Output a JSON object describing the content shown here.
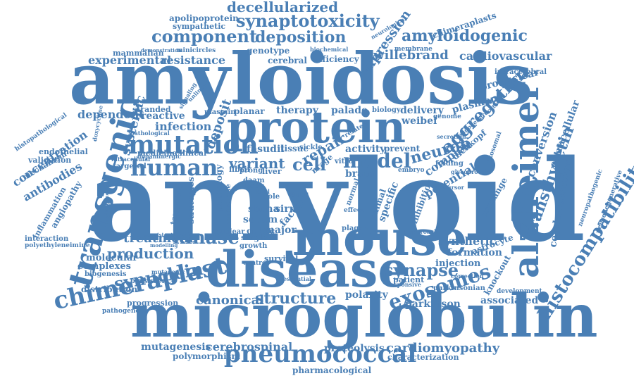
{
  "color": "#4a7fb5",
  "words": [
    {
      "text": "amyloid"
    },
    {
      "text": "amyloidosis"
    },
    {
      "text": "microglobulin"
    },
    {
      "text": "disease"
    },
    {
      "text": "mouse"
    },
    {
      "text": "protein"
    },
    {
      "text": "alzheimer"
    },
    {
      "text": "transgenic"
    },
    {
      "text": "histocompatibility"
    },
    {
      "text": "chimeraplast"
    },
    {
      "text": "pneumococcal"
    },
    {
      "text": "mutation"
    },
    {
      "text": "human"
    },
    {
      "text": "kinase"
    },
    {
      "text": "synuclein"
    },
    {
      "text": "model"
    },
    {
      "text": "exosomes"
    },
    {
      "text": "synapse"
    },
    {
      "text": "component"
    },
    {
      "text": "deposition"
    },
    {
      "text": "amyloidogenic"
    },
    {
      "text": "synaptotoxicity"
    },
    {
      "text": "decellularized"
    },
    {
      "text": "transthyretin"
    },
    {
      "text": "aggregation"
    },
    {
      "text": "neuron"
    },
    {
      "text": "structure"
    },
    {
      "text": "canonical"
    },
    {
      "text": "cerebrospinal"
    },
    {
      "text": "cardiomyopathy"
    },
    {
      "text": "mutagenesis"
    },
    {
      "text": "production"
    },
    {
      "text": "treatment"
    },
    {
      "text": "concentration"
    },
    {
      "text": "antibodies"
    },
    {
      "text": "systemic"
    },
    {
      "text": "deposit"
    },
    {
      "text": "repair"
    },
    {
      "text": "cell"
    },
    {
      "text": "variant"
    },
    {
      "text": "infection"
    },
    {
      "text": "expression"
    },
    {
      "text": "willebrand"
    },
    {
      "text": "cardiovascular"
    },
    {
      "text": "experimental"
    },
    {
      "text": "resistance"
    },
    {
      "text": "apolipoprotein"
    },
    {
      "text": "sympathetic"
    },
    {
      "text": "mammalian"
    },
    {
      "text": "minicircles"
    },
    {
      "text": "genotype"
    },
    {
      "text": "cerebral"
    },
    {
      "text": "efficiency"
    },
    {
      "text": "membrane"
    },
    {
      "text": "chimeraplasts"
    },
    {
      "text": "pronuclear"
    },
    {
      "text": "intracerebral"
    },
    {
      "text": "plasmon"
    },
    {
      "text": "weibel"
    },
    {
      "text": "delivery"
    },
    {
      "text": "genome"
    },
    {
      "text": "palade"
    },
    {
      "text": "therapy"
    },
    {
      "text": "planar"
    },
    {
      "text": "plasmin"
    },
    {
      "text": "biology"
    },
    {
      "text": "stranded"
    },
    {
      "text": "reactive"
    },
    {
      "text": "dependent"
    },
    {
      "text": "medicine"
    },
    {
      "text": "clinical"
    },
    {
      "text": "targeted"
    },
    {
      "text": "fasudil"
    },
    {
      "text": "tissue"
    },
    {
      "text": "activity"
    },
    {
      "text": "prevent"
    },
    {
      "text": "complex"
    },
    {
      "text": "dickkopf"
    },
    {
      "text": "conversion"
    },
    {
      "text": "extracellular"
    },
    {
      "text": "cerebrovascular"
    },
    {
      "text": "potential"
    },
    {
      "text": "brain"
    },
    {
      "text": "synthetic"
    },
    {
      "text": "formation"
    },
    {
      "text": "injection"
    },
    {
      "text": "astrocyte"
    },
    {
      "text": "exchange"
    },
    {
      "text": "knockout"
    },
    {
      "text": "parkinson"
    },
    {
      "text": "associated"
    },
    {
      "text": "polarity"
    },
    {
      "text": "patient"
    },
    {
      "text": "parkinsonian"
    },
    {
      "text": "proteolysis"
    },
    {
      "text": "polymorphism"
    },
    {
      "text": "pharmacological"
    },
    {
      "text": "characterization"
    },
    {
      "text": "complexes"
    },
    {
      "text": "molecular"
    },
    {
      "text": "distribution"
    },
    {
      "text": "progression"
    },
    {
      "text": "pathogenetic"
    },
    {
      "text": "biogenesis"
    },
    {
      "text": "persistence"
    },
    {
      "text": "mutagenic"
    },
    {
      "text": "inflammation"
    },
    {
      "text": "angiopathy"
    },
    {
      "text": "validation"
    },
    {
      "text": "endothelial"
    },
    {
      "text": "mechanism"
    },
    {
      "text": "histopathological"
    },
    {
      "text": "interaction"
    },
    {
      "text": "polyethyleneimine"
    },
    {
      "text": "shrna"
    },
    {
      "text": "serum"
    },
    {
      "text": "sirna"
    },
    {
      "text": "factor"
    },
    {
      "text": "major"
    },
    {
      "text": "cphpc"
    },
    {
      "text": "single"
    },
    {
      "text": "growth"
    },
    {
      "text": "survival"
    },
    {
      "text": "essential"
    },
    {
      "text": "control"
    },
    {
      "text": "pathology"
    },
    {
      "text": "strategies"
    },
    {
      "text": "targeting"
    },
    {
      "text": "minicircle"
    },
    {
      "text": "nuclear"
    },
    {
      "text": "nrage"
    },
    {
      "text": "specific"
    },
    {
      "text": "animal"
    },
    {
      "text": "inhibition"
    },
    {
      "text": "normal"
    },
    {
      "text": "neurodegenerative"
    },
    {
      "text": "neuropathogenic"
    },
    {
      "text": "development"
    },
    {
      "text": "correction"
    },
    {
      "text": "fibril"
    },
    {
      "text": "liver"
    },
    {
      "text": "prong"
    },
    {
      "text": "daam"
    },
    {
      "text": "body"
    },
    {
      "text": "level"
    },
    {
      "text": "role"
    },
    {
      "text": "attr"
    },
    {
      "text": "plaque"
    },
    {
      "text": "effect"
    },
    {
      "text": "embryo"
    },
    {
      "text": "folding"
    },
    {
      "text": "exosomal"
    },
    {
      "text": "responsive"
    },
    {
      "text": "dopaminergic"
    },
    {
      "text": "intracellular"
    },
    {
      "text": "pathological"
    },
    {
      "text": "doxycycline"
    },
    {
      "text": "biochemical"
    },
    {
      "text": "neurological"
    },
    {
      "text": "demonstration"
    },
    {
      "text": "consistent"
    },
    {
      "text": "modelling"
    },
    {
      "text": "fibrillogenesis"
    },
    {
      "text": "vitro"
    },
    {
      "text": "sickle"
    },
    {
      "text": "approach"
    },
    {
      "text": "secretion"
    },
    {
      "text": "related"
    },
    {
      "text": "precursor"
    },
    {
      "text": "signaling"
    },
    {
      "text": "oligodendrocyte"
    },
    {
      "text": "glycoprotein"
    },
    {
      "text": "unlinked"
    }
  ]
}
